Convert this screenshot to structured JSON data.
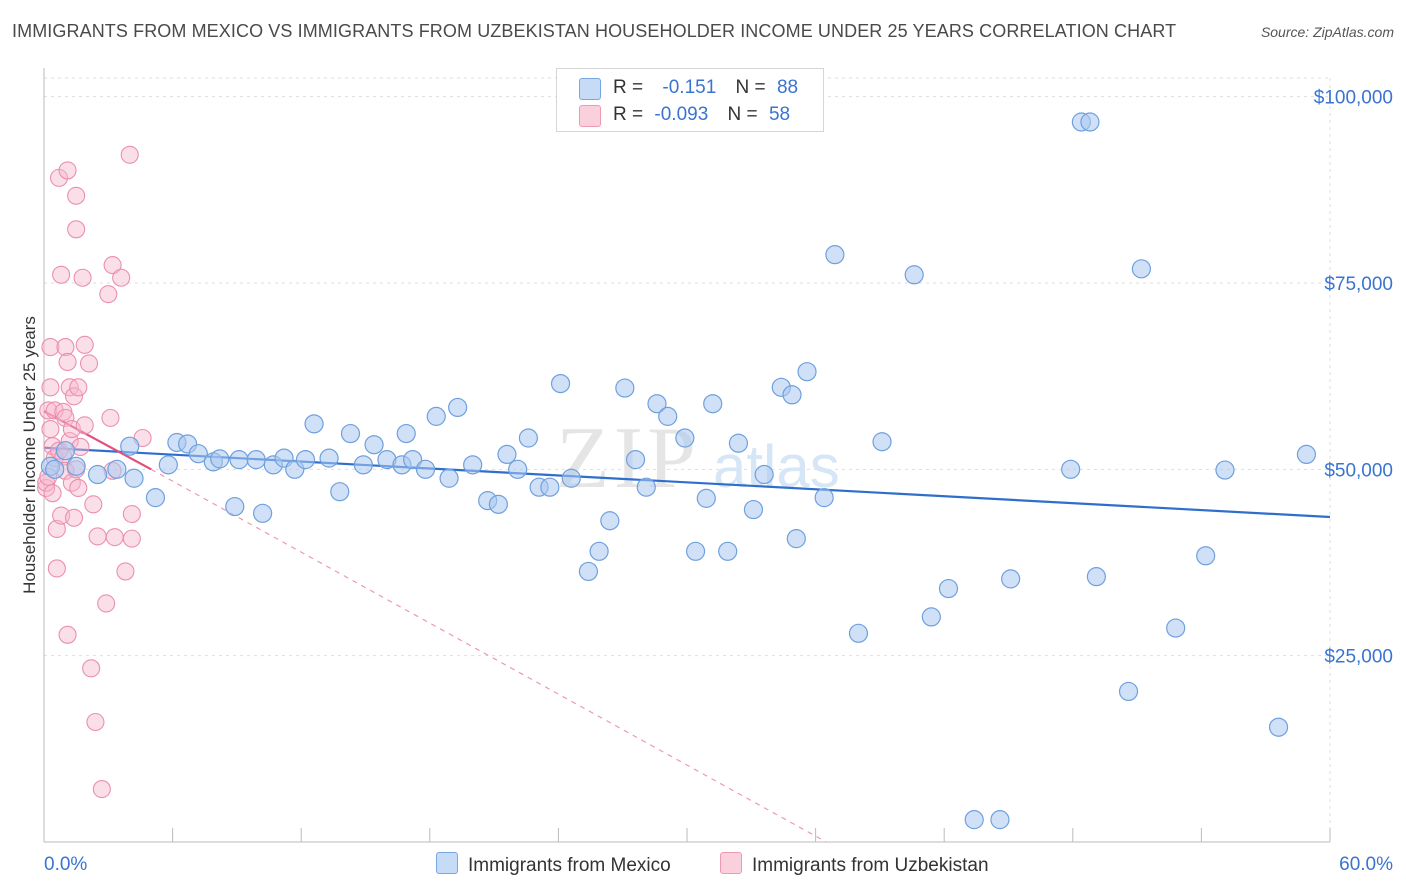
{
  "header": {
    "title": "IMMIGRANTS FROM MEXICO VS IMMIGRANTS FROM UZBEKISTAN HOUSEHOLDER INCOME UNDER 25 YEARS CORRELATION CHART",
    "source": "Source: ZipAtlas.com"
  },
  "watermark": {
    "zip": "ZIP",
    "atlas": "atlas"
  },
  "legend": {
    "rows": [
      {
        "r_label": "R =",
        "r_value": "-0.151",
        "n_label": "N =",
        "n_value": "88",
        "color": "#a9c9f0"
      },
      {
        "r_label": "R =",
        "r_value": "-0.093",
        "n_label": "N =",
        "n_value": "58",
        "color": "#f7b8cc"
      }
    ]
  },
  "bottom_legend": {
    "mexico": "Immigrants from Mexico",
    "uzbekistan": "Immigrants from Uzbekistan"
  },
  "colors": {
    "mexico_fill": "#a9c9f0",
    "mexico_stroke": "#6fa0de",
    "mexico_line": "#2f6fcc",
    "uzbek_fill": "#f7b8cc",
    "uzbek_stroke": "#ec8fae",
    "uzbek_line": "#e0517d",
    "axis_text": "#3a74d0",
    "grid": "#dddddd"
  },
  "chart_data": {
    "type": "scatter",
    "title": "IMMIGRANTS FROM MEXICO VS IMMIGRANTS FROM UZBEKISTAN HOUSEHOLDER INCOME UNDER 25 YEARS CORRELATION CHART",
    "xlabel": "",
    "ylabel": "Householder Income Under 25 years",
    "xlim": [
      0,
      60
    ],
    "ylim": [
      0,
      102500
    ],
    "x_tick_labels": [
      "0.0%",
      "60.0%"
    ],
    "y_ticks": [
      25000,
      50000,
      75000,
      100000
    ],
    "y_tick_labels": [
      "$25,000",
      "$50,000",
      "$75,000",
      "$100,000"
    ],
    "grid": true,
    "legend_position": "top-center",
    "series": [
      {
        "name": "Immigrants from Mexico",
        "r": -0.151,
        "n": 88,
        "points": [
          [
            0.3,
            50400
          ],
          [
            0.5,
            50000
          ],
          [
            1.0,
            52500
          ],
          [
            1.5,
            50400
          ],
          [
            2.5,
            49300
          ],
          [
            3.4,
            50000
          ],
          [
            4.0,
            53100
          ],
          [
            4.2,
            48800
          ],
          [
            5.2,
            46200
          ],
          [
            5.8,
            50600
          ],
          [
            6.2,
            53600
          ],
          [
            6.7,
            53400
          ],
          [
            7.2,
            52100
          ],
          [
            7.9,
            51000
          ],
          [
            8.2,
            51400
          ],
          [
            8.9,
            45000
          ],
          [
            9.1,
            51300
          ],
          [
            9.9,
            51300
          ],
          [
            10.2,
            44100
          ],
          [
            10.7,
            50600
          ],
          [
            11.2,
            51500
          ],
          [
            11.7,
            50000
          ],
          [
            12.2,
            51300
          ],
          [
            12.6,
            56100
          ],
          [
            13.3,
            51500
          ],
          [
            13.8,
            47000
          ],
          [
            14.3,
            54800
          ],
          [
            14.9,
            50600
          ],
          [
            15.4,
            53300
          ],
          [
            16.0,
            51300
          ],
          [
            16.7,
            50600
          ],
          [
            16.9,
            54800
          ],
          [
            17.2,
            51300
          ],
          [
            17.8,
            50000
          ],
          [
            18.3,
            57100
          ],
          [
            18.9,
            48800
          ],
          [
            19.3,
            58300
          ],
          [
            20.0,
            50600
          ],
          [
            20.7,
            45800
          ],
          [
            21.2,
            45300
          ],
          [
            21.6,
            52000
          ],
          [
            22.1,
            50000
          ],
          [
            22.6,
            54200
          ],
          [
            23.1,
            47600
          ],
          [
            23.6,
            47600
          ],
          [
            24.1,
            61500
          ],
          [
            24.6,
            48800
          ],
          [
            25.4,
            36300
          ],
          [
            25.9,
            39000
          ],
          [
            26.4,
            43100
          ],
          [
            27.1,
            60900
          ],
          [
            27.6,
            51300
          ],
          [
            28.1,
            47600
          ],
          [
            28.6,
            58800
          ],
          [
            29.1,
            57100
          ],
          [
            29.9,
            54200
          ],
          [
            30.4,
            39000
          ],
          [
            30.9,
            46100
          ],
          [
            31.2,
            58800
          ],
          [
            31.9,
            39000
          ],
          [
            32.4,
            53500
          ],
          [
            33.1,
            44600
          ],
          [
            33.6,
            49300
          ],
          [
            34.4,
            61000
          ],
          [
            34.9,
            60000
          ],
          [
            35.1,
            40700
          ],
          [
            35.6,
            63100
          ],
          [
            36.4,
            46200
          ],
          [
            36.9,
            78800
          ],
          [
            38.0,
            28000
          ],
          [
            39.1,
            53700
          ],
          [
            40.6,
            76100
          ],
          [
            41.4,
            30200
          ],
          [
            42.2,
            34000
          ],
          [
            43.4,
            3000
          ],
          [
            44.6,
            3000
          ],
          [
            45.1,
            35300
          ],
          [
            47.9,
            50000
          ],
          [
            48.4,
            96600
          ],
          [
            48.8,
            96600
          ],
          [
            49.1,
            35600
          ],
          [
            50.6,
            20200
          ],
          [
            51.2,
            76900
          ],
          [
            52.8,
            28700
          ],
          [
            54.2,
            38400
          ],
          [
            55.1,
            49900
          ],
          [
            57.6,
            15400
          ],
          [
            58.9,
            52000
          ]
        ],
        "trend": {
          "x": [
            0,
            60
          ],
          "y": [
            52900,
            43600
          ]
        }
      },
      {
        "name": "Immigrants from Uzbekistan",
        "r": -0.093,
        "n": 58,
        "points": [
          [
            0.1,
            47500
          ],
          [
            0.1,
            48200
          ],
          [
            0.2,
            49000
          ],
          [
            0.2,
            57900
          ],
          [
            0.3,
            61000
          ],
          [
            0.3,
            66400
          ],
          [
            0.3,
            55400
          ],
          [
            0.4,
            53100
          ],
          [
            0.4,
            46800
          ],
          [
            0.5,
            57900
          ],
          [
            0.5,
            51500
          ],
          [
            0.6,
            42000
          ],
          [
            0.6,
            36700
          ],
          [
            0.7,
            52500
          ],
          [
            0.7,
            89100
          ],
          [
            0.8,
            76100
          ],
          [
            0.8,
            43800
          ],
          [
            0.9,
            57700
          ],
          [
            0.9,
            51700
          ],
          [
            1.0,
            56900
          ],
          [
            1.0,
            66400
          ],
          [
            1.0,
            49800
          ],
          [
            1.1,
            90100
          ],
          [
            1.1,
            64400
          ],
          [
            1.1,
            27800
          ],
          [
            1.2,
            53800
          ],
          [
            1.2,
            61000
          ],
          [
            1.3,
            48200
          ],
          [
            1.3,
            55400
          ],
          [
            1.4,
            43500
          ],
          [
            1.4,
            59800
          ],
          [
            1.5,
            82200
          ],
          [
            1.5,
            86700
          ],
          [
            1.5,
            50000
          ],
          [
            1.6,
            47500
          ],
          [
            1.6,
            61000
          ],
          [
            1.7,
            53000
          ],
          [
            1.8,
            75700
          ],
          [
            1.9,
            55900
          ],
          [
            1.9,
            66700
          ],
          [
            2.1,
            64200
          ],
          [
            2.2,
            23300
          ],
          [
            2.3,
            45300
          ],
          [
            2.4,
            16100
          ],
          [
            2.5,
            41000
          ],
          [
            2.7,
            7100
          ],
          [
            2.9,
            32000
          ],
          [
            3.0,
            73500
          ],
          [
            3.1,
            56900
          ],
          [
            3.2,
            77400
          ],
          [
            3.2,
            49800
          ],
          [
            3.3,
            40900
          ],
          [
            3.6,
            75700
          ],
          [
            3.8,
            36300
          ],
          [
            4.0,
            92200
          ],
          [
            4.1,
            44000
          ],
          [
            4.1,
            40700
          ],
          [
            4.6,
            54200
          ]
        ],
        "trend": {
          "x": [
            0,
            5.0
          ],
          "y": [
            57800,
            50000
          ]
        },
        "trend_extended": {
          "x": [
            5.0,
            36.5
          ],
          "y": [
            50000,
            0
          ]
        }
      }
    ]
  }
}
